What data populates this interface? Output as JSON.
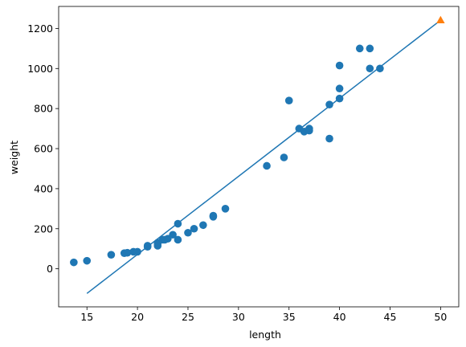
{
  "chart_data": {
    "type": "scatter",
    "title": "",
    "xlabel": "length",
    "ylabel": "weight",
    "xlim": [
      12.2,
      51.8
    ],
    "ylim": [
      -190,
      1310
    ],
    "xticks": [
      15,
      20,
      25,
      30,
      35,
      40,
      45,
      50
    ],
    "yticks": [
      0,
      200,
      400,
      600,
      800,
      1000,
      1200
    ],
    "grid": false,
    "legend": "none",
    "colors": {
      "scatter": "#1f77b4",
      "line": "#1f77b4",
      "prediction": "#ff7f0e"
    },
    "series": [
      {
        "type": "scatter",
        "marker": "circle",
        "x": [
          13.7,
          15.0,
          17.4,
          18.7,
          19.0,
          19.6,
          20.0,
          21.0,
          21.0,
          22.0,
          22.0,
          22.0,
          22.5,
          22.7,
          23.0,
          23.5,
          24.0,
          24.0,
          25.0,
          25.6,
          26.5,
          27.5,
          27.5,
          28.7,
          32.8,
          34.5,
          35.0,
          36.0,
          36.5,
          37.0,
          37.0,
          39.0,
          39.0,
          40.0,
          40.0,
          40.0,
          42.0,
          43.0,
          43.0,
          44.0
        ],
        "y": [
          32,
          40,
          70,
          78,
          80,
          85,
          85,
          110,
          115,
          115,
          125,
          130,
          145,
          145,
          150,
          170,
          225,
          145,
          180,
          200,
          218,
          260,
          265,
          300,
          514,
          556,
          840,
          700,
          685,
          700,
          690,
          650,
          820,
          850,
          900,
          1015,
          1100,
          1000,
          1100,
          1000
        ]
      },
      {
        "type": "line",
        "x": [
          15,
          50
        ],
        "y": [
          -123,
          1241
        ]
      },
      {
        "type": "scatter",
        "marker": "triangle",
        "x": [
          50
        ],
        "y": [
          1241
        ]
      }
    ]
  }
}
